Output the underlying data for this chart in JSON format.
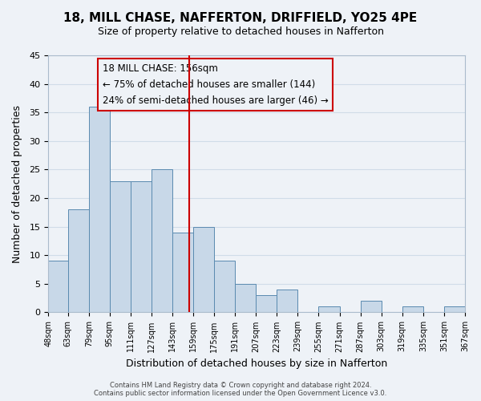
{
  "title": "18, MILL CHASE, NAFFERTON, DRIFFIELD, YO25 4PE",
  "subtitle": "Size of property relative to detached houses in Nafferton",
  "xlabel": "Distribution of detached houses by size in Nafferton",
  "ylabel": "Number of detached properties",
  "footer_line1": "Contains HM Land Registry data © Crown copyright and database right 2024.",
  "footer_line2": "Contains public sector information licensed under the Open Government Licence v3.0.",
  "bar_edges": [
    48,
    63,
    79,
    95,
    111,
    127,
    143,
    159,
    175,
    191,
    207,
    223,
    239,
    255,
    271,
    287,
    303,
    319,
    335,
    351,
    367
  ],
  "bar_heights": [
    9,
    18,
    36,
    23,
    23,
    25,
    14,
    15,
    9,
    5,
    3,
    4,
    0,
    1,
    0,
    2,
    0,
    1,
    0,
    1
  ],
  "bar_color": "#c8d8e8",
  "bar_edgecolor": "#5a8ab0",
  "property_line_x": 156,
  "property_line_color": "#cc0000",
  "annotation_title": "18 MILL CHASE: 156sqm",
  "annotation_line1": "← 75% of detached houses are smaller (144)",
  "annotation_line2": "24% of semi-detached houses are larger (46) →",
  "xlim": [
    48,
    367
  ],
  "ylim": [
    0,
    45
  ],
  "yticks": [
    0,
    5,
    10,
    15,
    20,
    25,
    30,
    35,
    40,
    45
  ],
  "xtick_labels": [
    "48sqm",
    "63sqm",
    "79sqm",
    "95sqm",
    "111sqm",
    "127sqm",
    "143sqm",
    "159sqm",
    "175sqm",
    "191sqm",
    "207sqm",
    "223sqm",
    "239sqm",
    "255sqm",
    "271sqm",
    "287sqm",
    "303sqm",
    "319sqm",
    "335sqm",
    "351sqm",
    "367sqm"
  ],
  "grid_color": "#d0dce8",
  "background_color": "#eef2f7"
}
